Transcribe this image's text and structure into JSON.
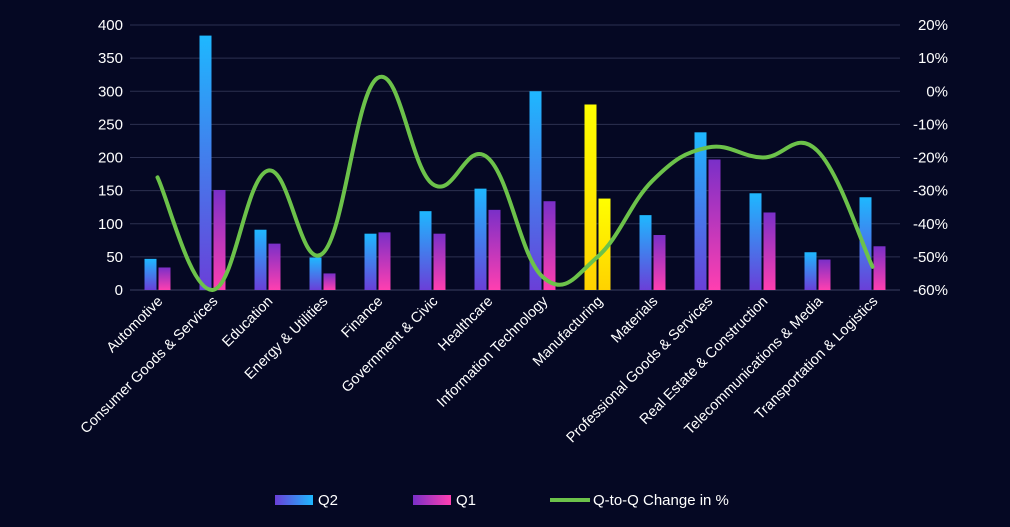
{
  "chart_data": {
    "type": "bar",
    "categories": [
      "Automotive",
      "Consumer Goods & Services",
      "Education",
      "Energy & Utilities",
      "Finance",
      "Government & Civic",
      "Healthcare",
      "Information Technology",
      "Manufacturing",
      "Materials",
      "Professional Goods & Services",
      "Real Estate & Construction",
      "Telecommunications & Media",
      "Transportation & Logistics"
    ],
    "series": [
      {
        "name": "Q2",
        "kind": "bar",
        "axis": "left",
        "values": [
          47,
          384,
          91,
          49,
          85,
          119,
          153,
          300,
          280,
          113,
          238,
          146,
          57,
          140
        ]
      },
      {
        "name": "Q1",
        "kind": "bar",
        "axis": "left",
        "values": [
          34,
          151,
          70,
          25,
          87,
          85,
          121,
          134,
          138,
          83,
          197,
          117,
          46,
          66
        ]
      },
      {
        "name": "Q-to-Q Change in %",
        "kind": "line",
        "axis": "right",
        "values": [
          -26,
          -60,
          -24,
          -49,
          4,
          -28,
          -20,
          -56,
          -50,
          -27,
          -17,
          -20,
          -18,
          -53
        ]
      }
    ],
    "highlight_index": 8,
    "ylim_left": [
      0,
      400
    ],
    "yticks_left": [
      0,
      50,
      100,
      150,
      200,
      250,
      300,
      350,
      400
    ],
    "yticks_left_labels": [
      "0",
      "50",
      "100",
      "150",
      "200",
      "250",
      "300",
      "350",
      "400"
    ],
    "ylim_right": [
      -60,
      20
    ],
    "yticks_right": [
      -60,
      -50,
      -40,
      -30,
      -20,
      -10,
      0,
      10,
      20
    ],
    "yticks_right_labels": [
      "-60%",
      "-50%",
      "-40%",
      "-30%",
      "-20%",
      "-10%",
      "0%",
      "10%",
      "20%"
    ],
    "grid": true,
    "legend_position": "bottom",
    "legend": [
      "Q2",
      "Q1",
      "Q-to-Q Change in %"
    ],
    "colors": {
      "background": "#050823",
      "grid": "#2c3050",
      "q2_top": "#1eb8ff",
      "q2_bottom": "#6a3fd8",
      "q1_top": "#7a2fc8",
      "q1_bottom": "#ff3fb0",
      "highlight_top": "#ffff00",
      "highlight_bottom": "#ffd700",
      "line": "#6cc24a"
    }
  }
}
